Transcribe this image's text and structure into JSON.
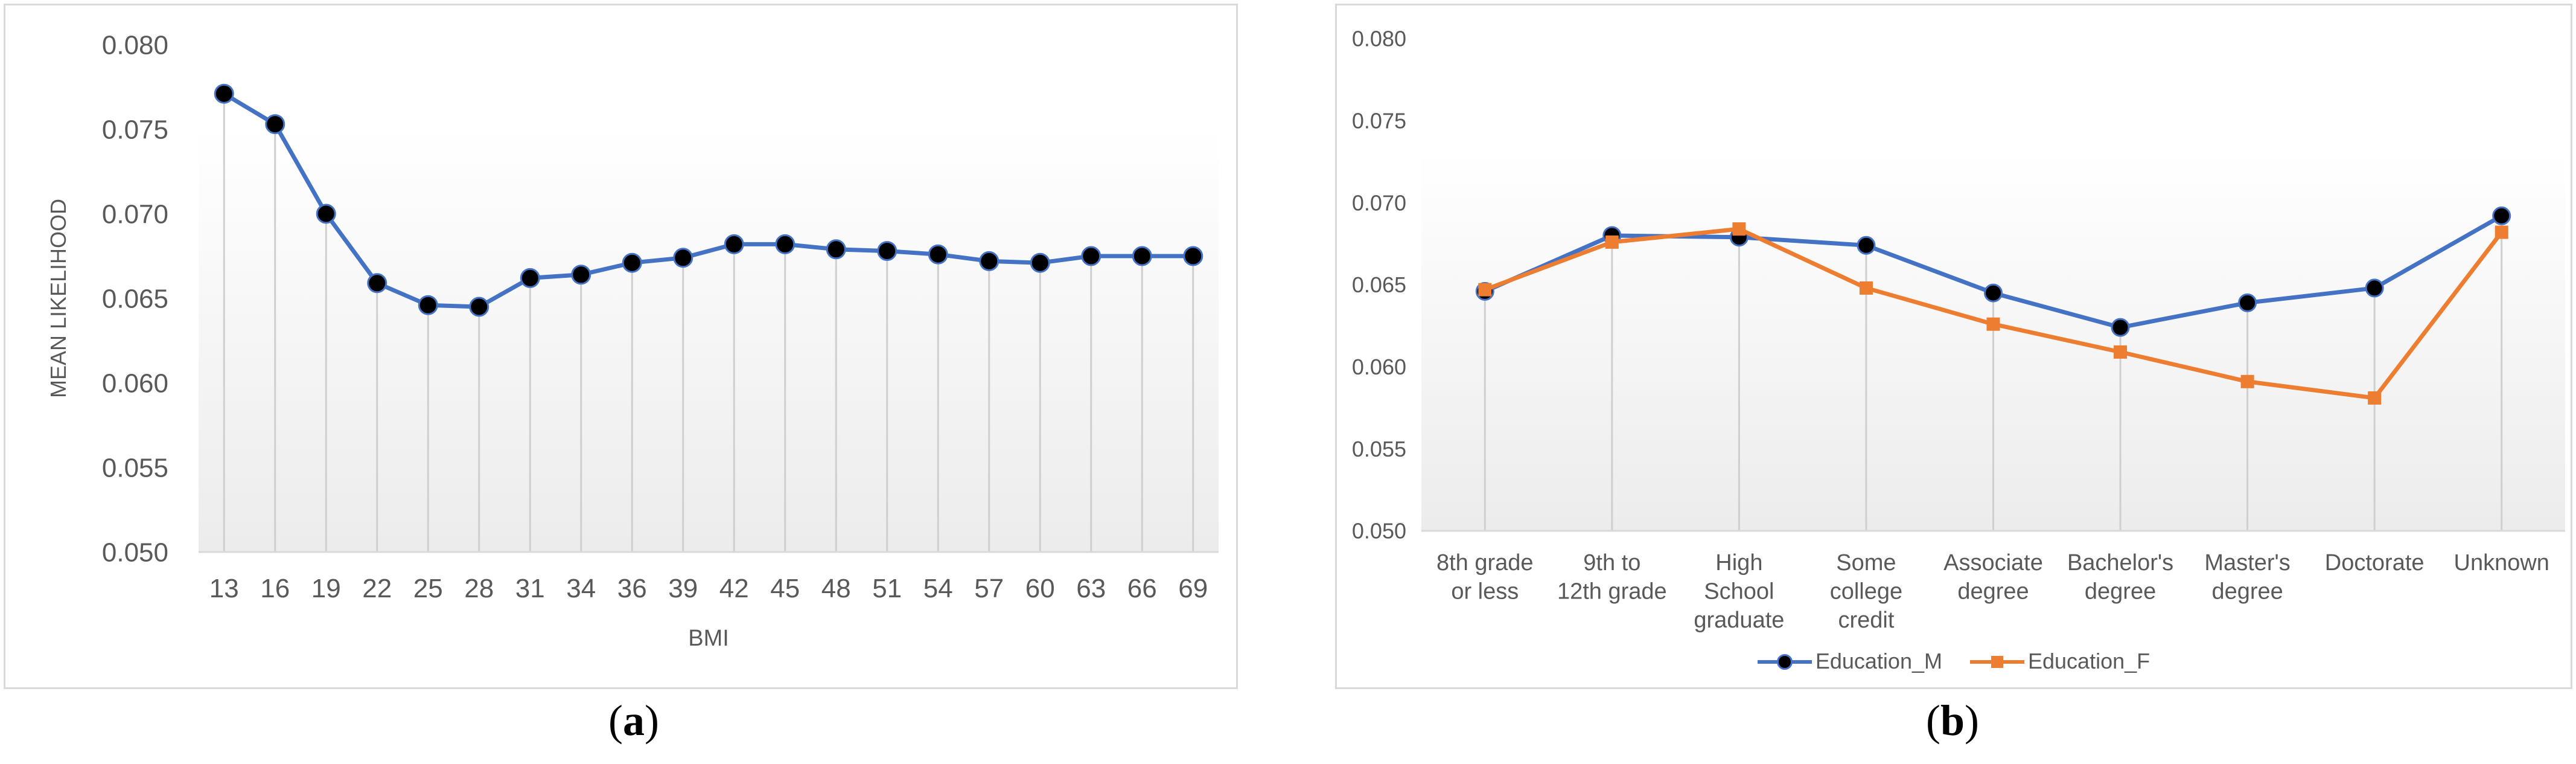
{
  "panels": {
    "a": {
      "caption_open": "(",
      "caption_letter": "a",
      "caption_close": ")"
    },
    "b": {
      "caption_open": "(",
      "caption_letter": "b",
      "caption_close": ")"
    }
  },
  "chart_data": [
    {
      "id": "a",
      "type": "line",
      "title": "",
      "xlabel": "BMI",
      "ylabel": "MEAN LIKELIHOOD",
      "ylim": [
        0.05,
        0.08
      ],
      "yticks": [
        "0.050",
        "0.055",
        "0.060",
        "0.065",
        "0.070",
        "0.075",
        "0.080"
      ],
      "categories": [
        "13",
        "16",
        "19",
        "22",
        "25",
        "28",
        "31",
        "34",
        "36",
        "39",
        "42",
        "45",
        "48",
        "51",
        "54",
        "57",
        "60",
        "63",
        "66",
        "69"
      ],
      "series": [
        {
          "color": "#4472c4",
          "marker_color": "#000000",
          "values": [
            0.0771,
            0.0753,
            0.07,
            0.0659,
            0.0646,
            0.0645,
            0.0662,
            0.0664,
            0.0671,
            0.0674,
            0.0682,
            0.0682,
            0.0679,
            0.0678,
            0.0676,
            0.0672,
            0.0671,
            0.0675,
            0.0675,
            0.0675
          ]
        }
      ],
      "grid": false,
      "droplines": true
    },
    {
      "id": "b",
      "type": "line",
      "title": "",
      "xlabel": "",
      "ylabel": "",
      "ylim": [
        0.05,
        0.08
      ],
      "yticks": [
        "0.050",
        "0.055",
        "0.060",
        "0.065",
        "0.070",
        "0.075",
        "0.080"
      ],
      "categories": [
        "8th grade or less",
        "9th to 12th grade",
        "High School graduate",
        "Some college credit",
        "Associate degree",
        "Bachelor's degree",
        "Master's degree",
        "Doctorate",
        "Unknown"
      ],
      "series": [
        {
          "name": "Education_M",
          "color": "#4472c4",
          "marker": "circle",
          "values": [
            0.0646,
            0.068,
            0.0679,
            0.0674,
            0.0645,
            0.0624,
            0.0639,
            0.0648,
            0.0692
          ]
        },
        {
          "name": "Education_F",
          "color": "#ed7d31",
          "marker": "square",
          "values": [
            0.0647,
            0.0676,
            0.0684,
            0.0648,
            0.0626,
            0.0609,
            0.0591,
            0.0581,
            0.0682
          ]
        }
      ],
      "legend": "bottom",
      "grid": false,
      "droplines": true
    }
  ]
}
